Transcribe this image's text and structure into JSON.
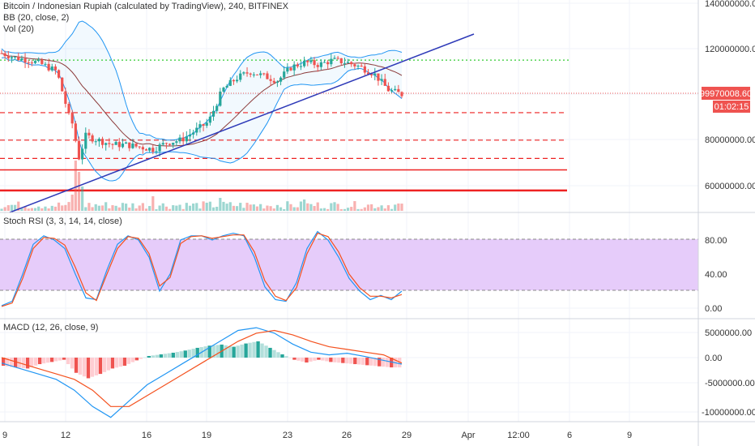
{
  "header": {
    "title": "Bitcoin / Indonesian Rupiah (calculated by TradingView), 240, BITFINEX",
    "bb": "BB (20, close, 2)",
    "vol": "Vol (20)",
    "stoch": "Stoch RSI (3, 3, 14, 14, close)",
    "macd": "MACD (12, 26, close, 9)"
  },
  "price_badge": "99970008.60",
  "countdown_badge": "01:02:15",
  "colors": {
    "up": "#26a69a",
    "down": "#ef5350",
    "bb": "#2196f3",
    "basis": "#8b3a3a",
    "trend": "#2e3ab8",
    "green_level": "#33cc33",
    "red_level": "#ee2222",
    "stoch_k": "#2196f3",
    "stoch_d": "#f4511e",
    "stoch_band": "#e6ccfa"
  },
  "chart_data": [
    {
      "type": "candlestick",
      "title": "Bitcoin / Indonesian Rupiah (calculated by TradingView), 240, BITFINEX",
      "y_ticks": [
        "140000000.00",
        "120000000.00",
        "80000000.00",
        "60000000.00"
      ],
      "x_ticks": [
        "9",
        "12",
        "16",
        "19",
        "23",
        "26",
        "29",
        "Apr",
        "12:00",
        "6",
        "9"
      ],
      "close_path": [
        [
          0,
          118
        ],
        [
          1,
          116
        ],
        [
          2,
          115
        ],
        [
          3,
          113
        ],
        [
          4,
          110
        ],
        [
          5,
          88
        ],
        [
          6,
          82
        ],
        [
          7,
          80
        ],
        [
          8,
          78
        ],
        [
          9,
          78
        ],
        [
          10,
          77
        ],
        [
          11,
          76
        ],
        [
          12,
          79
        ],
        [
          13,
          80
        ],
        [
          14,
          84
        ],
        [
          15,
          88
        ],
        [
          16,
          102
        ],
        [
          17,
          107
        ],
        [
          18,
          110
        ],
        [
          19,
          108
        ],
        [
          20,
          106
        ],
        [
          21,
          112
        ],
        [
          22,
          114
        ],
        [
          23,
          113
        ],
        [
          24,
          115
        ],
        [
          25,
          114
        ],
        [
          26,
          112
        ],
        [
          27,
          109
        ],
        [
          28,
          102
        ],
        [
          29,
          100
        ]
      ],
      "last_price": 99970008.6,
      "levels": [
        {
          "color": "green",
          "style": "dotted",
          "value": 115000000
        },
        {
          "color": "red",
          "style": "dashed",
          "value": 92000000
        },
        {
          "color": "red",
          "style": "dashed",
          "value": 80000000
        },
        {
          "color": "red",
          "style": "dashed",
          "value": 72000000
        },
        {
          "color": "red",
          "style": "solid",
          "value": 67000000
        },
        {
          "color": "red",
          "style": "solid",
          "value": 58000000
        }
      ]
    },
    {
      "type": "line",
      "title": "Stoch RSI (3, 3, 14, 14, close)",
      "y_ticks": [
        "80.00",
        "40.00",
        "0.00"
      ],
      "band": [
        20,
        80
      ],
      "series": [
        {
          "values": [
            3,
            8,
            40,
            75,
            85,
            80,
            70,
            40,
            12,
            10,
            45,
            75,
            85,
            80,
            60,
            20,
            40,
            80,
            85,
            85,
            80,
            85,
            88,
            85,
            60,
            25,
            10,
            8,
            30,
            70,
            90,
            80,
            60,
            35,
            20,
            10,
            15,
            10,
            20
          ]
        },
        {
          "values": [
            2,
            6,
            35,
            70,
            83,
            82,
            74,
            48,
            18,
            9,
            40,
            70,
            84,
            82,
            64,
            26,
            36,
            76,
            84,
            85,
            82,
            84,
            86,
            86,
            66,
            32,
            14,
            9,
            24,
            64,
            88,
            84,
            66,
            40,
            24,
            14,
            14,
            12,
            16
          ]
        }
      ]
    },
    {
      "type": "bar",
      "title": "MACD (12, 26, close, 9)",
      "y_ticks": [
        "5000000.00",
        "0.00",
        "-5000000.00",
        "-10000000.00"
      ],
      "histogram": [
        -1.5,
        -1.8,
        -2.0,
        -1.2,
        -0.8,
        -0.4,
        -2.8,
        -3.8,
        -3.0,
        -2.0,
        -1.5,
        -0.5,
        0.3,
        0.6,
        0.9,
        1.3,
        1.8,
        2.2,
        2.4,
        2.0,
        2.6,
        3.0,
        1.8,
        0.6,
        -0.4,
        -0.9,
        -0.4,
        -0.8,
        -1.0,
        -1.2,
        -1.4,
        -1.6,
        -1.8
      ],
      "series": [
        {
          "values": [
            -1,
            -2,
            -3,
            -4,
            -6,
            -9,
            -11,
            -8,
            -5,
            -3,
            -1,
            1,
            3,
            5,
            5.5,
            4.5,
            2.5,
            1,
            0.5,
            0.8,
            0.2,
            -0.5,
            -1.2
          ]
        },
        {
          "values": [
            0,
            -1,
            -2,
            -3,
            -4,
            -6,
            -9,
            -9,
            -7,
            -5,
            -3,
            -1,
            1,
            3,
            4.5,
            5,
            4.2,
            3,
            2,
            1.5,
            1,
            0.5,
            -1
          ]
        }
      ]
    }
  ]
}
